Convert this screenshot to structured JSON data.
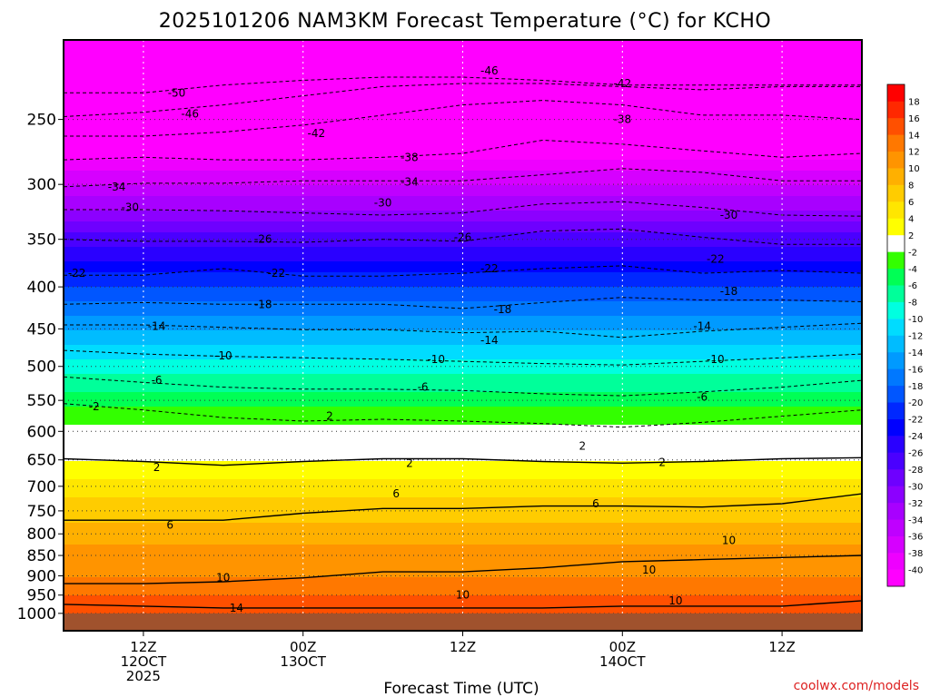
{
  "chart_data": {
    "type": "heatmap",
    "title": "2025101206 NAM3KM Forecast Temperature (°C) for KCHO",
    "xlabel": "Forecast Time (UTC)",
    "ylabel": "",
    "credit": "coolwx.com/models",
    "y_scale": "log",
    "y_inverted": true,
    "y_range_hPa": [
      1050,
      200
    ],
    "y_ticks": [
      250,
      300,
      350,
      400,
      450,
      500,
      550,
      600,
      650,
      700,
      750,
      800,
      850,
      900,
      950,
      1000
    ],
    "x_range_hours": [
      0,
      60
    ],
    "x_ticks": [
      {
        "hour": 6,
        "label": "12Z",
        "line2": "12OCT",
        "line3": "2025"
      },
      {
        "hour": 18,
        "label": "00Z",
        "line2": "13OCT",
        "line3": ""
      },
      {
        "hour": 30,
        "label": "12Z",
        "line2": "",
        "line3": ""
      },
      {
        "hour": 42,
        "label": "00Z",
        "line2": "14OCT",
        "line3": ""
      },
      {
        "hour": 54,
        "label": "12Z",
        "line2": "",
        "line3": ""
      }
    ],
    "grid": true,
    "colorbar": {
      "placement": "right",
      "levels": [
        -40,
        -38,
        -36,
        -34,
        -32,
        -30,
        -28,
        -26,
        -24,
        -22,
        -20,
        -18,
        -16,
        -14,
        -12,
        -10,
        -8,
        -6,
        -4,
        -2,
        2,
        4,
        6,
        8,
        10,
        12,
        14,
        16,
        18
      ],
      "colors": [
        "#ff00ff",
        "#ee00ff",
        "#d600ff",
        "#bf00ff",
        "#a800ff",
        "#8c00ff",
        "#6e00ff",
        "#4a00ff",
        "#2a00ff",
        "#0000ff",
        "#0028ff",
        "#0056ff",
        "#0078ff",
        "#009aff",
        "#00bcff",
        "#00dcff",
        "#00ffe0",
        "#00ff9a",
        "#00ff55",
        "#33ff00",
        "#ffffff",
        "#ffff00",
        "#ffe600",
        "#ffcc00",
        "#ffb000",
        "#ff9400",
        "#ff7800",
        "#ff5000",
        "#ff2800",
        "#ff0000"
      ]
    },
    "temperature_profile": [
      {
        "p": 200,
        "t": -54
      },
      {
        "p": 250,
        "t": -46
      },
      {
        "p": 300,
        "t": -36
      },
      {
        "p": 350,
        "t": -27
      },
      {
        "p": 400,
        "t": -20
      },
      {
        "p": 450,
        "t": -14
      },
      {
        "p": 500,
        "t": -9
      },
      {
        "p": 550,
        "t": -5
      },
      {
        "p": 600,
        "t": -1
      },
      {
        "p": 650,
        "t": 2
      },
      {
        "p": 700,
        "t": 5
      },
      {
        "p": 750,
        "t": 7
      },
      {
        "p": 800,
        "t": 9
      },
      {
        "p": 850,
        "t": 11
      },
      {
        "p": 900,
        "t": 12
      },
      {
        "p": 950,
        "t": 14
      },
      {
        "p": 1000,
        "t": 15
      },
      {
        "p": 1050,
        "t": 16
      }
    ],
    "contours": [
      {
        "value": -50,
        "p": 232,
        "dp": [
          0,
          0,
          -5,
          -8,
          -10,
          -10,
          -8,
          -5,
          -5,
          -5,
          -5
        ]
      },
      {
        "value": -46,
        "p": 248,
        "dp": [
          0,
          -3,
          -8,
          -14,
          -20,
          -22,
          -22,
          -20,
          -18,
          -20,
          -20
        ]
      },
      {
        "value": -42,
        "p": 262,
        "dp": [
          0,
          0,
          -3,
          -8,
          -15,
          -22,
          -25,
          -22,
          -15,
          -15,
          -12
        ]
      },
      {
        "value": -38,
        "p": 283,
        "dp": [
          -3,
          -5,
          -3,
          -3,
          -5,
          -8,
          -18,
          -15,
          -10,
          -5,
          -8
        ]
      },
      {
        "value": -34,
        "p": 302,
        "dp": [
          0,
          -3,
          -3,
          -5,
          -5,
          -5,
          -10,
          -15,
          -12,
          -5,
          -5
        ]
      },
      {
        "value": -30,
        "p": 325,
        "dp": [
          -3,
          -3,
          -2,
          0,
          2,
          0,
          -8,
          -10,
          -5,
          2,
          3
        ]
      },
      {
        "value": -26,
        "p": 350,
        "dp": [
          0,
          2,
          2,
          3,
          0,
          2,
          -8,
          -10,
          -2,
          5,
          5
        ]
      },
      {
        "value": -22,
        "p": 385,
        "dp": [
          2,
          2,
          -5,
          3,
          3,
          0,
          -5,
          -8,
          0,
          -3,
          0
        ]
      },
      {
        "value": -18,
        "p": 415,
        "dp": [
          5,
          3,
          5,
          5,
          5,
          10,
          3,
          -3,
          0,
          0,
          2
        ]
      },
      {
        "value": -14,
        "p": 443,
        "dp": [
          2,
          2,
          5,
          8,
          8,
          12,
          10,
          18,
          10,
          5,
          0
        ]
      },
      {
        "value": -10,
        "p": 478,
        "dp": [
          0,
          5,
          8,
          10,
          12,
          15,
          18,
          20,
          15,
          10,
          5
        ]
      },
      {
        "value": -6,
        "p": 515,
        "dp": [
          0,
          8,
          15,
          18,
          18,
          20,
          25,
          28,
          22,
          15,
          5
        ]
      },
      {
        "value": -2,
        "p": 555,
        "dp": [
          0,
          10,
          22,
          28,
          25,
          28,
          32,
          38,
          30,
          20,
          10
        ]
      },
      {
        "value": 2,
        "p": 648,
        "dp": [
          0,
          5,
          12,
          5,
          0,
          0,
          5,
          8,
          5,
          0,
          -2
        ]
      },
      {
        "value": 6,
        "p": 770,
        "dp": [
          0,
          0,
          0,
          -15,
          -25,
          -25,
          -30,
          -30,
          -28,
          -35,
          -55
        ]
      },
      {
        "value": 10,
        "p": 920,
        "dp": [
          0,
          0,
          -5,
          -15,
          -30,
          -30,
          -40,
          -55,
          -60,
          -65,
          -70
        ]
      },
      {
        "value": 14,
        "p": 975,
        "dp": [
          0,
          5,
          10,
          10,
          10,
          10,
          10,
          5,
          5,
          5,
          -10
        ]
      }
    ],
    "contour_labels": [
      {
        "text": "-50",
        "hour": 8.5,
        "p": 232
      },
      {
        "text": "-46",
        "hour": 9.5,
        "p": 246
      },
      {
        "text": "-46",
        "hour": 32,
        "p": 218
      },
      {
        "text": "-42",
        "hour": 19,
        "p": 260
      },
      {
        "text": "-42",
        "hour": 42,
        "p": 226
      },
      {
        "text": "-38",
        "hour": 26,
        "p": 278
      },
      {
        "text": "-38",
        "hour": 42,
        "p": 250
      },
      {
        "text": "-34",
        "hour": 4,
        "p": 302
      },
      {
        "text": "-34",
        "hour": 26,
        "p": 298
      },
      {
        "text": "-30",
        "hour": 5,
        "p": 320
      },
      {
        "text": "-30",
        "hour": 24,
        "p": 316
      },
      {
        "text": "-30",
        "hour": 50,
        "p": 327
      },
      {
        "text": "-26",
        "hour": 15,
        "p": 350
      },
      {
        "text": "-26",
        "hour": 30,
        "p": 348
      },
      {
        "text": "-22",
        "hour": 1,
        "p": 385
      },
      {
        "text": "-22",
        "hour": 16,
        "p": 385
      },
      {
        "text": "-22",
        "hour": 32,
        "p": 380
      },
      {
        "text": "-22",
        "hour": 49,
        "p": 370
      },
      {
        "text": "-18",
        "hour": 15,
        "p": 420
      },
      {
        "text": "-18",
        "hour": 33,
        "p": 426
      },
      {
        "text": "-18",
        "hour": 50,
        "p": 405
      },
      {
        "text": "-14",
        "hour": 7,
        "p": 447
      },
      {
        "text": "-14",
        "hour": 32,
        "p": 465
      },
      {
        "text": "-14",
        "hour": 48,
        "p": 447
      },
      {
        "text": "-10",
        "hour": 12,
        "p": 485
      },
      {
        "text": "-10",
        "hour": 28,
        "p": 490
      },
      {
        "text": "-10",
        "hour": 49,
        "p": 490
      },
      {
        "text": "-6",
        "hour": 7,
        "p": 520
      },
      {
        "text": "-6",
        "hour": 27,
        "p": 530
      },
      {
        "text": "-6",
        "hour": 48,
        "p": 545
      },
      {
        "text": "-2",
        "hour": 2.3,
        "p": 560
      },
      {
        "text": "2",
        "hour": 20,
        "p": 575
      },
      {
        "text": "2",
        "hour": 39,
        "p": 625
      },
      {
        "text": "2",
        "hour": 7,
        "p": 664
      },
      {
        "text": "2",
        "hour": 26,
        "p": 656
      },
      {
        "text": "2",
        "hour": 45,
        "p": 655
      },
      {
        "text": "6",
        "hour": 25,
        "p": 715
      },
      {
        "text": "6",
        "hour": 40,
        "p": 735
      },
      {
        "text": "6",
        "hour": 8,
        "p": 780
      },
      {
        "text": "10",
        "hour": 12,
        "p": 905
      },
      {
        "text": "10",
        "hour": 30,
        "p": 950
      },
      {
        "text": "10",
        "hour": 44,
        "p": 885
      },
      {
        "text": "10",
        "hour": 50,
        "p": 815
      },
      {
        "text": "10",
        "hour": 46,
        "p": 965
      },
      {
        "text": "14",
        "hour": 13,
        "p": 985
      }
    ]
  }
}
